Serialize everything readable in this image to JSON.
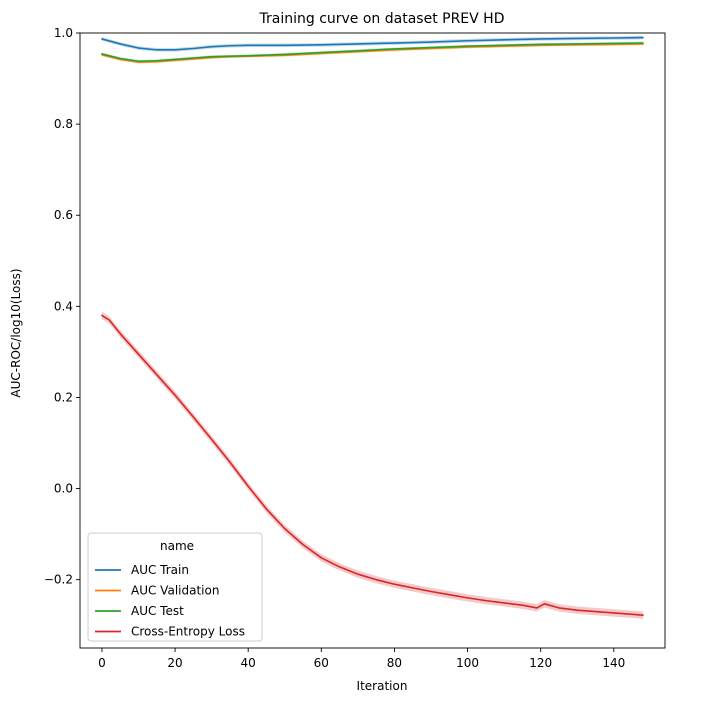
{
  "chart_data": {
    "type": "line",
    "title": "Training curve on dataset PREV HD",
    "xlabel": "Iteration",
    "ylabel": "AUC-ROC/log10(Loss)",
    "xlim": [
      -6,
      154
    ],
    "ylim": [
      -0.35,
      1.0
    ],
    "xticks": [
      0,
      20,
      40,
      60,
      80,
      100,
      120,
      140
    ],
    "yticks": [
      -0.2,
      0.0,
      0.2,
      0.4,
      0.6,
      0.8,
      1.0
    ],
    "ytick_labels": [
      "−0.2",
      "0.0",
      "0.2",
      "0.4",
      "0.6",
      "0.8",
      "1.0"
    ],
    "grid": false,
    "legend": {
      "title": "name",
      "position": "lower-left"
    },
    "series": [
      {
        "name": "AUC Train",
        "color": "#1f77b4",
        "band": 0.004,
        "x": [
          0,
          5,
          10,
          15,
          20,
          25,
          30,
          35,
          40,
          50,
          60,
          70,
          80,
          90,
          100,
          110,
          120,
          130,
          140,
          148
        ],
        "y": [
          0.987,
          0.976,
          0.967,
          0.963,
          0.963,
          0.966,
          0.97,
          0.972,
          0.973,
          0.973,
          0.974,
          0.976,
          0.978,
          0.98,
          0.983,
          0.985,
          0.987,
          0.988,
          0.989,
          0.99
        ]
      },
      {
        "name": "AUC Validation",
        "color": "#ff7f0e",
        "band": 0.003,
        "x": [
          0,
          5,
          10,
          15,
          20,
          25,
          30,
          35,
          40,
          50,
          60,
          70,
          80,
          90,
          100,
          110,
          120,
          130,
          140,
          148
        ],
        "y": [
          0.952,
          0.942,
          0.936,
          0.937,
          0.94,
          0.943,
          0.946,
          0.948,
          0.949,
          0.951,
          0.955,
          0.959,
          0.963,
          0.966,
          0.969,
          0.971,
          0.973,
          0.974,
          0.975,
          0.976
        ]
      },
      {
        "name": "AUC Test",
        "color": "#2ca02c",
        "band": 0.003,
        "x": [
          0,
          5,
          10,
          15,
          20,
          25,
          30,
          35,
          40,
          50,
          60,
          70,
          80,
          90,
          100,
          110,
          120,
          130,
          140,
          148
        ],
        "y": [
          0.954,
          0.944,
          0.938,
          0.939,
          0.942,
          0.945,
          0.948,
          0.949,
          0.95,
          0.953,
          0.957,
          0.961,
          0.965,
          0.968,
          0.971,
          0.973,
          0.975,
          0.976,
          0.977,
          0.978
        ]
      },
      {
        "name": "Cross-Entropy Loss",
        "color": "#d62728",
        "band": 0.008,
        "x": [
          0,
          2,
          5,
          10,
          15,
          20,
          25,
          30,
          35,
          40,
          45,
          50,
          55,
          60,
          65,
          70,
          75,
          80,
          85,
          90,
          95,
          100,
          105,
          110,
          115,
          119,
          121,
          125,
          130,
          135,
          140,
          145,
          148
        ],
        "y": [
          0.38,
          0.37,
          0.34,
          0.295,
          0.25,
          0.205,
          0.157,
          0.108,
          0.058,
          0.005,
          -0.045,
          -0.088,
          -0.123,
          -0.152,
          -0.172,
          -0.188,
          -0.2,
          -0.21,
          -0.218,
          -0.226,
          -0.233,
          -0.24,
          -0.246,
          -0.251,
          -0.256,
          -0.262,
          -0.253,
          -0.262,
          -0.267,
          -0.27,
          -0.273,
          -0.276,
          -0.278
        ]
      }
    ]
  }
}
